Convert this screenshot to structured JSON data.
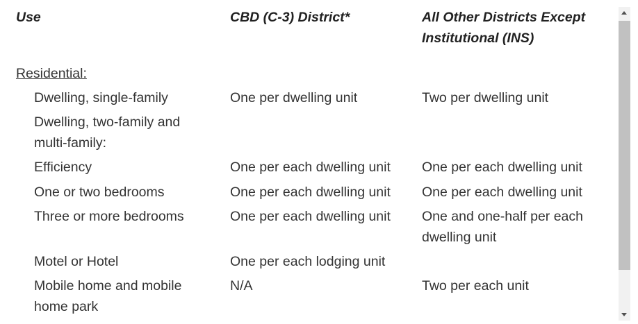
{
  "headers": {
    "use": "Use",
    "cbd": "CBD (C-3) District*",
    "other_line1": "All Other Districts Except",
    "other_line2": "Institutional (INS)"
  },
  "section": "Residential:",
  "rows": [
    {
      "use": [
        "Dwelling, single-family"
      ],
      "cbd": [
        "One per dwelling unit"
      ],
      "other": [
        "Two per dwelling unit"
      ]
    },
    {
      "use": [
        "Dwelling, two-family and",
        "multi-family:"
      ],
      "cbd": [],
      "other": []
    },
    {
      "use": [
        "Efficiency"
      ],
      "cbd": [
        "One per each dwelling unit"
      ],
      "other": [
        "One per each dwelling unit"
      ]
    },
    {
      "use": [
        "One or two bedrooms"
      ],
      "cbd": [
        "One per each dwelling unit"
      ],
      "other": [
        "One per each dwelling unit"
      ]
    },
    {
      "use": [
        "Three or more bedrooms"
      ],
      "cbd": [
        "One per each dwelling unit"
      ],
      "other": [
        "One and one-half per each",
        "dwelling unit"
      ]
    },
    {
      "use": [
        "Motel or Hotel"
      ],
      "cbd": [
        "One per each lodging unit"
      ],
      "other": []
    },
    {
      "use": [
        "Mobile home and mobile",
        "home park"
      ],
      "cbd": [
        "N/A"
      ],
      "other": [
        "Two per each unit"
      ]
    }
  ],
  "scrollbar": {
    "position_fraction": 0.0,
    "visible_fraction": 0.8
  }
}
